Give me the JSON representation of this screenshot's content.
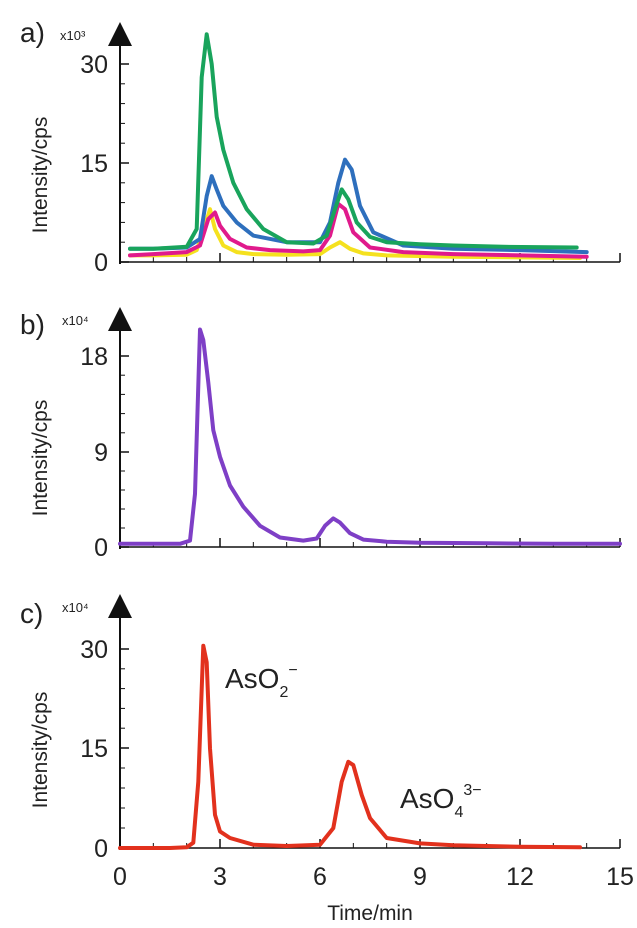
{
  "chart_data": [
    {
      "panel": "a)",
      "type": "line",
      "ylabel": "Intensity/cps",
      "multiplier": "x10³",
      "yticks": [
        "0",
        "15",
        "30"
      ],
      "ylim": [
        0,
        36
      ],
      "xlim": [
        0,
        15
      ],
      "series": [
        {
          "color": "#f5e11e",
          "x": [
            0.3,
            1.0,
            2.0,
            2.3,
            2.55,
            2.7,
            2.85,
            3.1,
            3.5,
            4.0,
            5.0,
            6.0,
            6.3,
            6.6,
            6.9,
            7.3,
            8.0,
            10.0,
            12.0,
            13.8
          ],
          "values": [
            1.0,
            1.0,
            1.1,
            1.8,
            5.5,
            8.0,
            5.0,
            2.5,
            1.5,
            1.2,
            1.1,
            1.2,
            2.2,
            3.0,
            2.0,
            1.3,
            1.0,
            0.8,
            0.7,
            0.6
          ]
        },
        {
          "color": "#e01a8c",
          "x": [
            0.3,
            1.0,
            2.0,
            2.4,
            2.65,
            2.85,
            3.0,
            3.3,
            3.8,
            4.5,
            5.5,
            6.0,
            6.3,
            6.55,
            6.75,
            7.0,
            7.5,
            8.5,
            10.0,
            12.0,
            14.0
          ],
          "values": [
            1.0,
            1.2,
            1.5,
            2.5,
            6.5,
            7.5,
            5.5,
            3.5,
            2.2,
            1.8,
            1.6,
            1.8,
            4.0,
            8.8,
            8.0,
            4.5,
            2.2,
            1.5,
            1.2,
            1.0,
            0.8
          ]
        },
        {
          "color": "#2e6fbd",
          "x": [
            0.3,
            1.0,
            2.0,
            2.4,
            2.6,
            2.75,
            2.9,
            3.1,
            3.5,
            4.0,
            5.0,
            6.0,
            6.3,
            6.55,
            6.75,
            6.95,
            7.2,
            7.6,
            8.5,
            10.0,
            12.0,
            14.0
          ],
          "values": [
            2.0,
            2.0,
            2.2,
            3.5,
            10.0,
            13.0,
            11.0,
            8.5,
            6.0,
            4.0,
            3.0,
            3.0,
            6.0,
            12.0,
            15.5,
            14.0,
            8.5,
            4.5,
            2.5,
            2.0,
            1.8,
            1.5
          ]
        },
        {
          "color": "#19a45c",
          "x": [
            0.3,
            1.0,
            2.0,
            2.3,
            2.45,
            2.6,
            2.75,
            2.9,
            3.1,
            3.4,
            3.8,
            4.3,
            5.0,
            5.8,
            6.2,
            6.45,
            6.65,
            6.85,
            7.1,
            7.5,
            8.0,
            9.0,
            10.0,
            11.5,
            13.7
          ],
          "values": [
            2.0,
            2.0,
            2.3,
            5.0,
            28.0,
            34.5,
            30.0,
            22.0,
            17.0,
            12.0,
            8.0,
            5.0,
            3.0,
            2.8,
            4.0,
            8.0,
            11.0,
            9.5,
            6.0,
            3.8,
            3.0,
            2.7,
            2.5,
            2.3,
            2.2
          ]
        }
      ]
    },
    {
      "panel": "b)",
      "type": "line",
      "ylabel": "Intensity/cps",
      "multiplier": "x10⁴",
      "yticks": [
        "0",
        "9",
        "18"
      ],
      "ylim": [
        0,
        22
      ],
      "xlim": [
        0,
        15
      ],
      "series": [
        {
          "color": "#7e3fc6",
          "x": [
            0.0,
            1.0,
            1.8,
            2.1,
            2.25,
            2.4,
            2.5,
            2.65,
            2.8,
            3.0,
            3.3,
            3.7,
            4.2,
            4.8,
            5.5,
            5.9,
            6.15,
            6.4,
            6.6,
            6.9,
            7.3,
            8.0,
            9.0,
            11.0,
            13.0,
            15.0
          ],
          "values": [
            0.3,
            0.3,
            0.3,
            0.6,
            5.0,
            20.5,
            19.5,
            15.5,
            11.0,
            8.5,
            5.8,
            3.8,
            2.0,
            0.9,
            0.6,
            0.8,
            2.0,
            2.7,
            2.3,
            1.3,
            0.7,
            0.5,
            0.4,
            0.35,
            0.3,
            0.3
          ]
        }
      ]
    },
    {
      "panel": "c)",
      "type": "line",
      "ylabel": "Intensity/cps",
      "multiplier": "x10⁴",
      "yticks": [
        "0",
        "15",
        "30"
      ],
      "ylim": [
        0,
        36
      ],
      "xlim": [
        0,
        15
      ],
      "xlabel": "Time/min",
      "xticks": [
        "0",
        "3",
        "6",
        "9",
        "12",
        "15"
      ],
      "annotations": [
        {
          "main": "AsO",
          "sub": "2",
          "sup": "−"
        },
        {
          "main": "AsO",
          "sub": "4",
          "sup": "3−"
        }
      ],
      "series": [
        {
          "color": "#e2311d",
          "x": [
            0.0,
            1.5,
            2.0,
            2.2,
            2.35,
            2.5,
            2.6,
            2.7,
            2.85,
            3.0,
            3.3,
            4.0,
            5.0,
            6.0,
            6.4,
            6.65,
            6.85,
            7.0,
            7.25,
            7.5,
            8.0,
            9.0,
            10.0,
            12.0,
            13.8
          ],
          "values": [
            0.0,
            0.0,
            0.1,
            0.8,
            10.0,
            30.5,
            28.0,
            15.0,
            5.0,
            2.5,
            1.5,
            0.5,
            0.3,
            0.5,
            3.0,
            10.0,
            13.0,
            12.5,
            8.0,
            4.5,
            1.5,
            0.7,
            0.4,
            0.2,
            0.1
          ]
        }
      ]
    }
  ]
}
